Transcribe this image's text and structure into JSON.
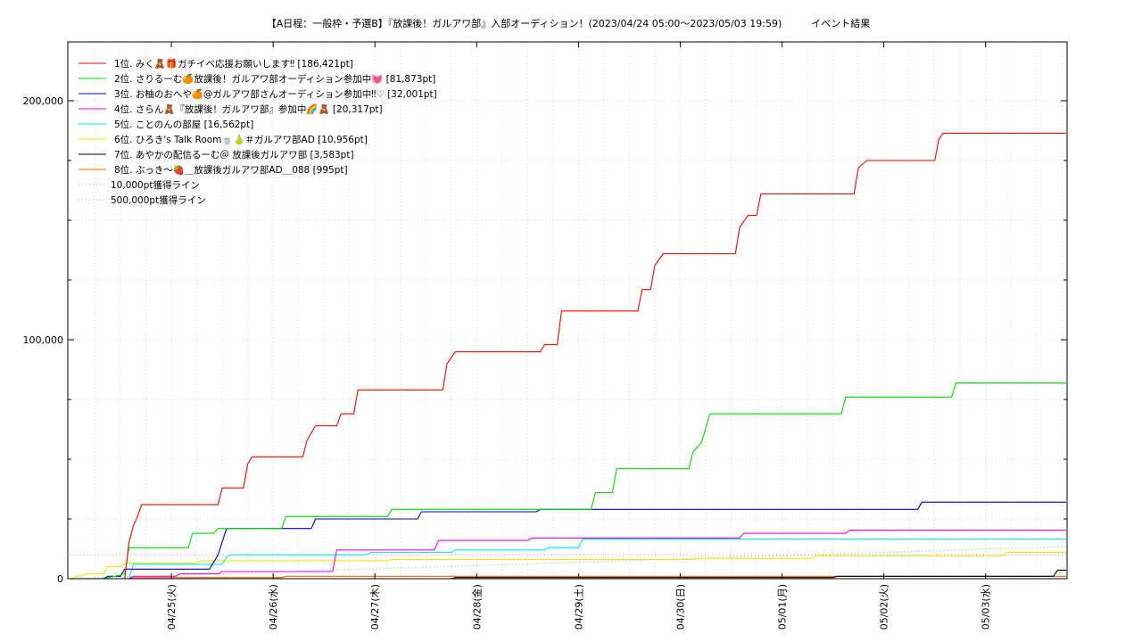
{
  "chart_data": {
    "type": "line",
    "title": "【A日程：一般枠・予選B】『放課後！ガルアワ部』入部オーディション！(2023/04/24 05:00〜2023/05/03 19:59)　　　イベント結果",
    "xlabel": "",
    "ylabel": "",
    "ylim": [
      0,
      200000
    ],
    "y_ticks": [
      {
        "v": 0,
        "label": "0"
      },
      {
        "v": 100000,
        "label": "100,000"
      },
      {
        "v": 200000,
        "label": "200,000"
      }
    ],
    "x_tick_labels": [
      "04/25(火)",
      "04/26(水)",
      "04/27(木)",
      "04/28(金)",
      "04/29(土)",
      "04/30(日)",
      "05/01(月)",
      "05/02(火)",
      "05/03(水)"
    ],
    "x_range_hours": [
      0,
      235
    ],
    "grid": true,
    "legend_position": "top-left",
    "series": [
      {
        "name": "1位. みく🧸🎁ガチイベ応援お願いします‼ [186,421pt]",
        "color": "#ff0000",
        "dash": "",
        "points": [
          [
            0,
            0
          ],
          [
            2,
            0
          ],
          [
            5,
            0
          ],
          [
            13,
            0
          ],
          [
            14,
            15000
          ],
          [
            15,
            22000
          ],
          [
            16,
            26000
          ],
          [
            17,
            31000
          ],
          [
            35,
            31000
          ],
          [
            36,
            38000
          ],
          [
            41,
            38000
          ],
          [
            42,
            48000
          ],
          [
            43,
            51000
          ],
          [
            55,
            51000
          ],
          [
            56,
            58000
          ],
          [
            58,
            64000
          ],
          [
            63,
            64000
          ],
          [
            64,
            69000
          ],
          [
            67,
            69000
          ],
          [
            68,
            79000
          ],
          [
            88,
            79000
          ],
          [
            89,
            90000
          ],
          [
            91,
            95000
          ],
          [
            111,
            95000
          ],
          [
            112,
            98000
          ],
          [
            115,
            98000
          ],
          [
            116,
            112000
          ],
          [
            134,
            112000
          ],
          [
            135,
            121000
          ],
          [
            137,
            121000
          ],
          [
            138,
            131000
          ],
          [
            140,
            136000
          ],
          [
            157,
            136000
          ],
          [
            158,
            147000
          ],
          [
            160,
            152000
          ],
          [
            162,
            152000
          ],
          [
            163,
            161000
          ],
          [
            185,
            161000
          ],
          [
            186,
            172000
          ],
          [
            188,
            175000
          ],
          [
            204,
            175000
          ],
          [
            205,
            184000
          ],
          [
            206,
            186421
          ],
          [
            235,
            186421
          ]
        ]
      },
      {
        "name": "2位. さりるーむ🍊放課後！ガルアワ部オーディション参加中💓 [81,873pt]",
        "color": "#00dd00",
        "dash": "",
        "points": [
          [
            0,
            0
          ],
          [
            8,
            0
          ],
          [
            13,
            2000
          ],
          [
            14,
            13000
          ],
          [
            28,
            13000
          ],
          [
            29,
            19000
          ],
          [
            34,
            19000
          ],
          [
            35,
            21000
          ],
          [
            50,
            21000
          ],
          [
            51,
            26000
          ],
          [
            75,
            26000
          ],
          [
            76,
            29000
          ],
          [
            123,
            29000
          ],
          [
            124,
            36000
          ],
          [
            128,
            36000
          ],
          [
            129,
            46000
          ],
          [
            146,
            46000
          ],
          [
            147,
            53000
          ],
          [
            149,
            57000
          ],
          [
            151,
            69000
          ],
          [
            182,
            69000
          ],
          [
            183,
            76000
          ],
          [
            208,
            76000
          ],
          [
            209,
            81873
          ],
          [
            235,
            81873
          ]
        ]
      },
      {
        "name": "3位. お柚のおへや🍊@ガルアワ部さんオーディション参加中‼♡ [32,001pt]",
        "color": "#0000cc",
        "dash": "",
        "points": [
          [
            0,
            0
          ],
          [
            8,
            0
          ],
          [
            9,
            1000
          ],
          [
            12,
            1000
          ],
          [
            13,
            4000
          ],
          [
            33,
            4000
          ],
          [
            35,
            10000
          ],
          [
            37,
            21000
          ],
          [
            57,
            21000
          ],
          [
            58,
            25000
          ],
          [
            82,
            25000
          ],
          [
            83,
            28000
          ],
          [
            110,
            28000
          ],
          [
            111,
            29000
          ],
          [
            200,
            29000
          ],
          [
            201,
            32001
          ],
          [
            235,
            32001
          ]
        ]
      },
      {
        "name": "4位. さらん🧸『放課後！ガルアワ部』参加中🌈🧸 [20,317pt]",
        "color": "#ff00ff",
        "dash": "",
        "points": [
          [
            0,
            0
          ],
          [
            14,
            0
          ],
          [
            15,
            1000
          ],
          [
            25,
            1000
          ],
          [
            26,
            2000
          ],
          [
            35,
            2000
          ],
          [
            36,
            3000
          ],
          [
            62,
            3000
          ],
          [
            63,
            12000
          ],
          [
            86,
            12000
          ],
          [
            87,
            16000
          ],
          [
            108,
            16000
          ],
          [
            109,
            17000
          ],
          [
            158,
            17000
          ],
          [
            159,
            19000
          ],
          [
            183,
            19000
          ],
          [
            184,
            20317
          ],
          [
            235,
            20317
          ]
        ]
      },
      {
        "name": "5位. ことのんの部屋 [16,562pt]",
        "color": "#00eeee",
        "dash": "",
        "points": [
          [
            0,
            0
          ],
          [
            14,
            0
          ],
          [
            15,
            6000
          ],
          [
            36,
            6000
          ],
          [
            37,
            9000
          ],
          [
            38,
            10000
          ],
          [
            70,
            10000
          ],
          [
            71,
            11000
          ],
          [
            90,
            11000
          ],
          [
            91,
            12000
          ],
          [
            112,
            12000
          ],
          [
            113,
            13000
          ],
          [
            120,
            13000
          ],
          [
            121,
            16562
          ],
          [
            235,
            16562
          ]
        ]
      },
      {
        "name": "6位. ひろき's Talk Room🍵🍐＃ガルアワ部AD [10,956pt]",
        "color": "#f0e800",
        "dash": "",
        "points": [
          [
            0,
            0
          ],
          [
            2,
            1000
          ],
          [
            4,
            2000
          ],
          [
            8,
            2000
          ],
          [
            9,
            5000
          ],
          [
            12,
            5000
          ],
          [
            13,
            6500
          ],
          [
            30,
            6500
          ],
          [
            31,
            7500
          ],
          [
            75,
            7500
          ],
          [
            76,
            8000
          ],
          [
            147,
            8000
          ],
          [
            148,
            8500
          ],
          [
            175,
            8500
          ],
          [
            176,
            9500
          ],
          [
            220,
            9500
          ],
          [
            221,
            10956
          ],
          [
            235,
            10956
          ]
        ]
      },
      {
        "name": "7位. あやかの配信るーむ＠ 放課後ガルアワ部 [3,583pt]",
        "color": "#000000",
        "dash": "",
        "points": [
          [
            0,
            0
          ],
          [
            90,
            0
          ],
          [
            91,
            500
          ],
          [
            180,
            500
          ],
          [
            181,
            1000
          ],
          [
            232,
            1000
          ],
          [
            233,
            3583
          ],
          [
            235,
            3583
          ]
        ]
      },
      {
        "name": "8位. ぶっき〜🍓＿放課後ガルアワ部AD＿088 [995pt]",
        "color": "#ff6600",
        "dash": "",
        "points": [
          [
            0,
            0
          ],
          [
            14,
            0
          ],
          [
            15,
            500
          ],
          [
            50,
            500
          ],
          [
            51,
            995
          ],
          [
            235,
            995
          ]
        ]
      },
      {
        "name": "10,000pt獲得ライン",
        "color": "#ff8888",
        "dash": "1,3",
        "points": [
          [
            0,
            10000
          ],
          [
            235,
            10000
          ]
        ]
      },
      {
        "name": "500,000pt獲得ライン",
        "color": "#66dd66",
        "dash": "1,3",
        "points": [
          [
            0,
            0
          ],
          [
            235,
            13500
          ]
        ]
      }
    ]
  }
}
